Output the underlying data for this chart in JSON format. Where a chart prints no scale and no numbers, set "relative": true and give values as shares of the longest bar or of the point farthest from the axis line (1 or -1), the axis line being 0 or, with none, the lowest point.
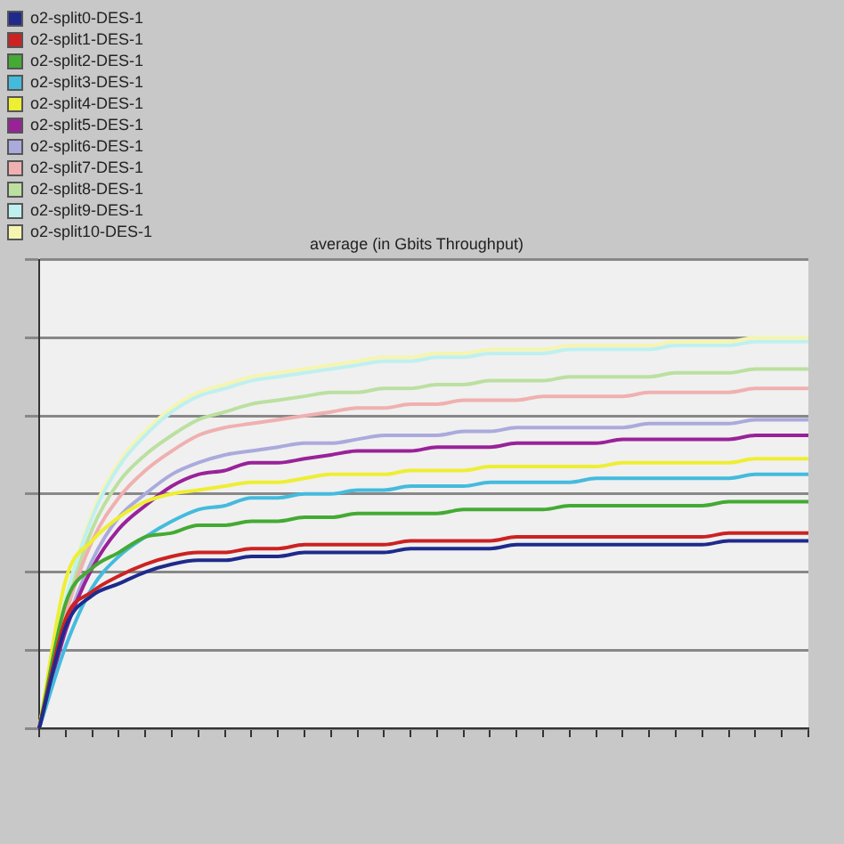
{
  "chart_data": {
    "type": "line",
    "title": "average (in Gbits Throughput)",
    "relative": true,
    "grid": "y",
    "legend": "top left",
    "tick_labels": false,
    "marker": "none",
    "line_style": "solid",
    "categories": [
      null,
      null,
      null,
      null,
      null,
      null,
      null,
      null,
      null,
      null,
      null,
      null,
      null,
      null,
      null,
      null,
      null,
      null,
      null,
      null,
      null,
      null,
      null,
      null,
      null,
      null,
      null,
      null,
      null,
      null
    ],
    "series": [
      {
        "name": "o2-split0-DES-1",
        "color": "#1f2a8c",
        "values": [
          0,
          0.26,
          0.34,
          0.37,
          0.4,
          0.42,
          0.43,
          0.43,
          0.44,
          0.44,
          0.45,
          0.45,
          0.45,
          0.45,
          0.46,
          0.46,
          0.46,
          0.46,
          0.47,
          0.47,
          0.47,
          0.47,
          0.47,
          0.47,
          0.47,
          0.47,
          0.48,
          0.48,
          0.48,
          0.48
        ]
      },
      {
        "name": "o2-split1-DES-1",
        "color": "#cc2222",
        "values": [
          0,
          0.28,
          0.35,
          0.39,
          0.42,
          0.44,
          0.45,
          0.45,
          0.46,
          0.46,
          0.47,
          0.47,
          0.47,
          0.47,
          0.48,
          0.48,
          0.48,
          0.48,
          0.49,
          0.49,
          0.49,
          0.49,
          0.49,
          0.49,
          0.49,
          0.49,
          0.5,
          0.5,
          0.5,
          0.5
        ]
      },
      {
        "name": "o2-split2-DES-1",
        "color": "#44aa33",
        "values": [
          0,
          0.32,
          0.41,
          0.45,
          0.49,
          0.5,
          0.52,
          0.52,
          0.53,
          0.53,
          0.54,
          0.54,
          0.55,
          0.55,
          0.55,
          0.55,
          0.56,
          0.56,
          0.56,
          0.56,
          0.57,
          0.57,
          0.57,
          0.57,
          0.57,
          0.57,
          0.58,
          0.58,
          0.58,
          0.58
        ]
      },
      {
        "name": "o2-split3-DES-1",
        "color": "#44bbdd",
        "values": [
          0,
          0.21,
          0.36,
          0.44,
          0.49,
          0.53,
          0.56,
          0.57,
          0.59,
          0.59,
          0.6,
          0.6,
          0.61,
          0.61,
          0.62,
          0.62,
          0.62,
          0.63,
          0.63,
          0.63,
          0.63,
          0.64,
          0.64,
          0.64,
          0.64,
          0.64,
          0.64,
          0.65,
          0.65,
          0.65
        ]
      },
      {
        "name": "o2-split4-DES-1",
        "color": "#eeee33",
        "values": [
          0,
          0.38,
          0.48,
          0.54,
          0.58,
          0.6,
          0.61,
          0.62,
          0.63,
          0.63,
          0.64,
          0.65,
          0.65,
          0.65,
          0.66,
          0.66,
          0.66,
          0.67,
          0.67,
          0.67,
          0.67,
          0.67,
          0.68,
          0.68,
          0.68,
          0.68,
          0.68,
          0.69,
          0.69,
          0.69
        ]
      },
      {
        "name": "o2-split5-DES-1",
        "color": "#992299",
        "values": [
          0,
          0.25,
          0.41,
          0.51,
          0.57,
          0.62,
          0.65,
          0.66,
          0.68,
          0.68,
          0.69,
          0.7,
          0.71,
          0.71,
          0.71,
          0.72,
          0.72,
          0.72,
          0.73,
          0.73,
          0.73,
          0.73,
          0.74,
          0.74,
          0.74,
          0.74,
          0.74,
          0.75,
          0.75,
          0.75
        ]
      },
      {
        "name": "o2-split6-DES-1",
        "color": "#aaaadd",
        "values": [
          0,
          0.26,
          0.43,
          0.54,
          0.6,
          0.65,
          0.68,
          0.7,
          0.71,
          0.72,
          0.73,
          0.73,
          0.74,
          0.75,
          0.75,
          0.75,
          0.76,
          0.76,
          0.77,
          0.77,
          0.77,
          0.77,
          0.77,
          0.78,
          0.78,
          0.78,
          0.78,
          0.79,
          0.79,
          0.79
        ]
      },
      {
        "name": "o2-split7-DES-1",
        "color": "#f0b0b0",
        "values": [
          0,
          0.29,
          0.48,
          0.59,
          0.66,
          0.71,
          0.75,
          0.77,
          0.78,
          0.79,
          0.8,
          0.81,
          0.82,
          0.82,
          0.83,
          0.83,
          0.84,
          0.84,
          0.84,
          0.85,
          0.85,
          0.85,
          0.85,
          0.86,
          0.86,
          0.86,
          0.86,
          0.87,
          0.87,
          0.87
        ]
      },
      {
        "name": "o2-split8-DES-1",
        "color": "#bbe0a0",
        "values": [
          0,
          0.3,
          0.51,
          0.63,
          0.7,
          0.75,
          0.79,
          0.81,
          0.83,
          0.84,
          0.85,
          0.86,
          0.86,
          0.87,
          0.87,
          0.88,
          0.88,
          0.89,
          0.89,
          0.89,
          0.9,
          0.9,
          0.9,
          0.9,
          0.91,
          0.91,
          0.91,
          0.92,
          0.92,
          0.92
        ]
      },
      {
        "name": "o2-split9-DES-1",
        "color": "#bff0f0",
        "values": [
          0,
          0.33,
          0.54,
          0.67,
          0.75,
          0.81,
          0.85,
          0.87,
          0.89,
          0.9,
          0.91,
          0.92,
          0.93,
          0.94,
          0.94,
          0.95,
          0.95,
          0.96,
          0.96,
          0.96,
          0.97,
          0.97,
          0.97,
          0.97,
          0.98,
          0.98,
          0.98,
          0.99,
          0.99,
          0.99
        ]
      },
      {
        "name": "o2-split10-DES-1",
        "color": "#f5f5b0",
        "values": [
          0,
          0.33,
          0.55,
          0.68,
          0.76,
          0.82,
          0.86,
          0.88,
          0.9,
          0.91,
          0.92,
          0.93,
          0.94,
          0.95,
          0.95,
          0.96,
          0.96,
          0.97,
          0.97,
          0.97,
          0.98,
          0.98,
          0.98,
          0.98,
          0.99,
          0.99,
          0.99,
          1,
          1,
          1
        ]
      }
    ]
  }
}
